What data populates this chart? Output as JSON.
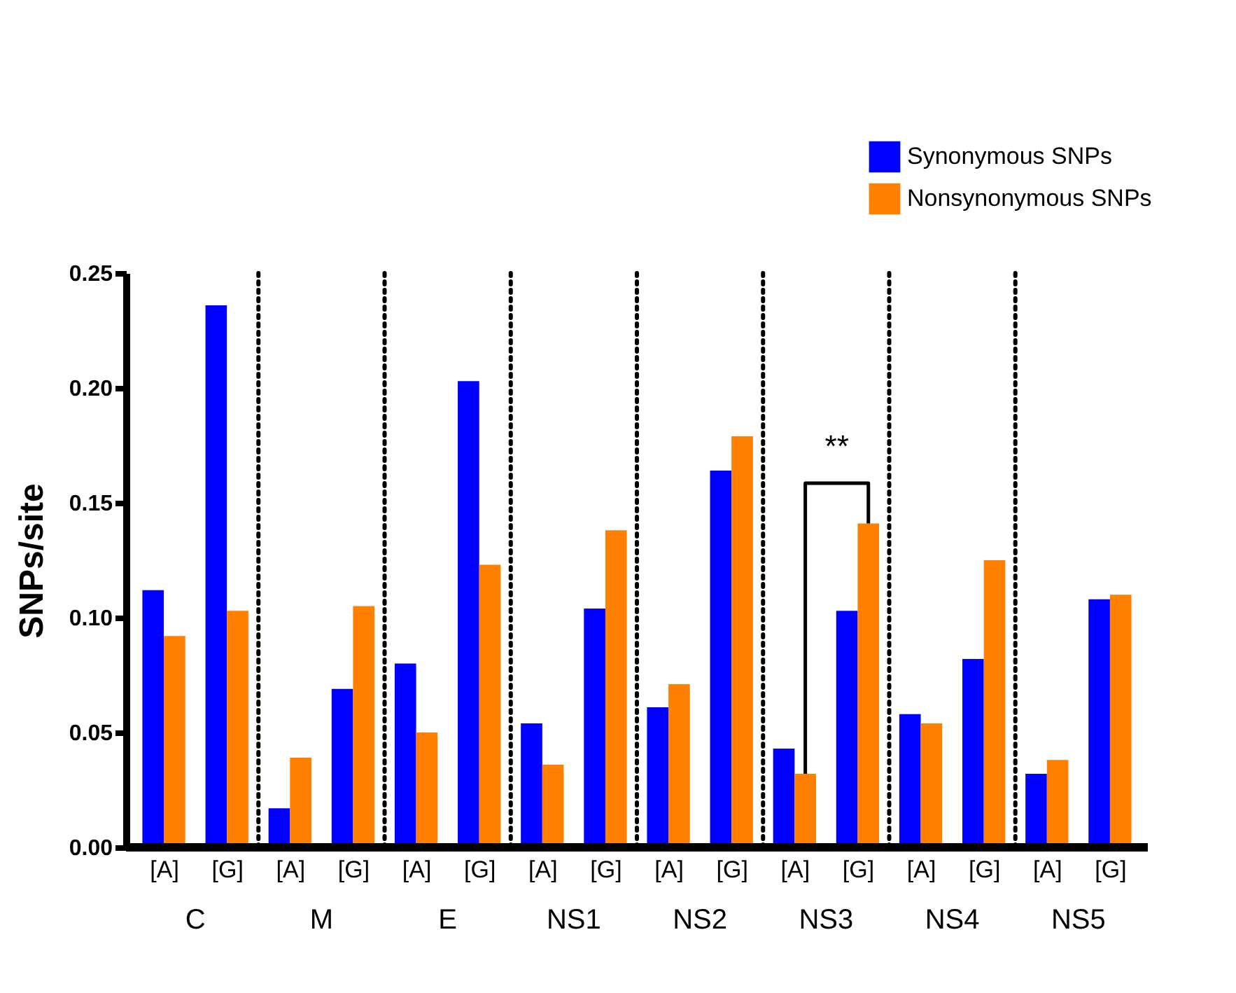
{
  "chart_data": {
    "type": "bar",
    "ylabel": "SNPs/site",
    "categories": [
      "[A]",
      "[G]",
      "[A]",
      "[G]",
      "[A]",
      "[G]",
      "[A]",
      "[G]",
      "[A]",
      "[G]",
      "[A]",
      "[G]",
      "[A]",
      "[G]",
      "[A]",
      "[G]"
    ],
    "series": [
      {
        "name": "Synonymous SNPs",
        "color": "#0000ff",
        "values": [
          0.112,
          0.236,
          0.017,
          0.069,
          0.08,
          0.203,
          0.054,
          0.104,
          0.061,
          0.164,
          0.043,
          0.103,
          0.058,
          0.082,
          0.032,
          0.108
        ]
      },
      {
        "name": "Nonsynonymous SNPs",
        "color": "#ff8000",
        "values": [
          0.092,
          0.103,
          0.039,
          0.105,
          0.05,
          0.123,
          0.036,
          0.138,
          0.071,
          0.179,
          0.032,
          0.141,
          0.054,
          0.125,
          0.038,
          0.11
        ]
      }
    ],
    "ylim": [
      0,
      0.25
    ],
    "yticks": [
      {
        "value": 0,
        "label": "0.00"
      },
      {
        "value": 0.05,
        "label": "0.05"
      },
      {
        "value": 0.1,
        "label": "0.10"
      },
      {
        "value": 0.15,
        "label": "0.15"
      },
      {
        "value": 0.2,
        "label": "0.20"
      },
      {
        "value": 0.25,
        "label": "0.25"
      }
    ],
    "annotations": [
      "C",
      "M",
      "E",
      "NS1",
      "NS2",
      "NS3",
      "NS4",
      "NS5",
      "**"
    ],
    "grid": false,
    "legend": "top right"
  }
}
